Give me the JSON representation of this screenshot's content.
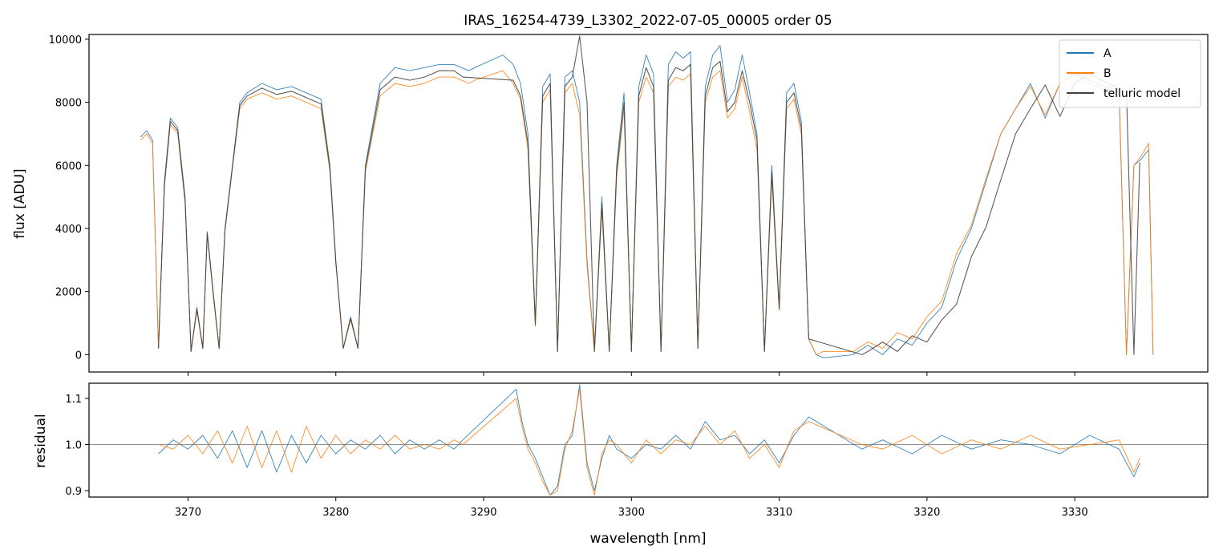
{
  "figure": {
    "title": "IRAS_16254-4739_L3302_2022-07-05_00005  order 05"
  },
  "chart_data": [
    {
      "type": "line",
      "panel": "flux",
      "xlabel": "",
      "ylabel": "flux [ADU]",
      "xlim": [
        3263.3,
        3339.0
      ],
      "ylim": [
        -550,
        10150
      ],
      "yticks": [
        0,
        2000,
        4000,
        6000,
        8000,
        10000
      ],
      "xticks": [
        3270,
        3280,
        3290,
        3300,
        3310,
        3320,
        3330
      ],
      "legend": {
        "placement": "top-right",
        "entries": [
          "A",
          "B",
          "telluric model"
        ]
      },
      "series": [
        {
          "name": "A",
          "color": "#1f77b4",
          "x": [
            3266.8,
            3267.2,
            3267.6,
            3268.0,
            3268.4,
            3268.8,
            3269.3,
            3269.8,
            3270.2,
            3270.6,
            3271.0,
            3271.3,
            3271.7,
            3272.1,
            3272.5,
            3273.0,
            3273.5,
            3274.0,
            3275.0,
            3276.0,
            3277.0,
            3278.0,
            3279.0,
            3279.6,
            3280.0,
            3280.5,
            3281.0,
            3281.5,
            3282.0,
            3283.0,
            3284.0,
            3285.0,
            3286.0,
            3287.0,
            3288.0,
            3289.0,
            3289.4,
            3291.3,
            3292.0,
            3292.5,
            3293.0,
            3293.5,
            3294.0,
            3294.5,
            3295.0,
            3295.5,
            3296.0,
            3296.5,
            3297.0,
            3297.5,
            3298.0,
            3298.5,
            3299.0,
            3299.5,
            3300.0,
            3300.5,
            3301.0,
            3301.5,
            3302.0,
            3302.5,
            3303.0,
            3303.5,
            3304.0,
            3304.5,
            3305.0,
            3305.5,
            3306.0,
            3306.5,
            3307.0,
            3307.5,
            3308.0,
            3308.5,
            3309.0,
            3309.5,
            3310.0,
            3310.5,
            3311.0,
            3311.5,
            3312.0,
            3312.5,
            3313.0,
            3315.0,
            3316.0,
            3317.0,
            3318.0,
            3319.0,
            3320.0,
            3321.0,
            3322.0,
            3323.0,
            3324.0,
            3325.0,
            3326.0,
            3327.0,
            3328.0,
            3329.0,
            3330.0,
            3331.0,
            3332.0,
            3333.0,
            3333.5,
            3334.0,
            3334.5,
            3335.0,
            3335.3
          ],
          "y": [
            6900,
            7100,
            6800,
            200,
            5500,
            7500,
            7200,
            5000,
            100,
            1500,
            200,
            3900,
            2000,
            200,
            4000,
            6000,
            8000,
            8300,
            8600,
            8400,
            8500,
            8300,
            8100,
            6000,
            3000,
            200,
            1200,
            200,
            6000,
            8600,
            9100,
            9000,
            9100,
            9200,
            9200,
            9000,
            9100,
            9500,
            9200,
            8600,
            7000,
            1000,
            8500,
            8900,
            100,
            8800,
            9000,
            8000,
            3000,
            100,
            5000,
            100,
            6000,
            8300,
            100,
            8500,
            9500,
            8900,
            100,
            9200,
            9600,
            9400,
            9600,
            200,
            8500,
            9500,
            9800,
            8000,
            8400,
            9500,
            8300,
            7000,
            100,
            6000,
            1500,
            8300,
            8600,
            7400,
            500,
            0,
            -100,
            0,
            300,
            0,
            500,
            300,
            1000,
            1500,
            3000,
            4000,
            5500,
            7000,
            7800,
            8600,
            7500,
            8600,
            8900,
            8700,
            8500,
            8400,
            0,
            6000,
            6200,
            6500,
            0
          ]
        },
        {
          "name": "B",
          "color": "#ff7f0e",
          "x": [
            3266.8,
            3267.2,
            3267.6,
            3268.0,
            3268.4,
            3268.8,
            3269.3,
            3269.8,
            3270.2,
            3270.6,
            3271.0,
            3271.3,
            3271.7,
            3272.1,
            3272.5,
            3273.0,
            3273.5,
            3274.0,
            3275.0,
            3276.0,
            3277.0,
            3278.0,
            3279.0,
            3279.6,
            3280.0,
            3280.5,
            3281.0,
            3281.5,
            3282.0,
            3283.0,
            3284.0,
            3285.0,
            3286.0,
            3287.0,
            3288.0,
            3289.0,
            3289.4,
            3291.3,
            3292.0,
            3292.5,
            3293.0,
            3293.5,
            3294.0,
            3294.5,
            3295.0,
            3295.5,
            3296.0,
            3296.5,
            3297.0,
            3297.5,
            3298.0,
            3298.5,
            3299.0,
            3299.5,
            3300.0,
            3300.5,
            3301.0,
            3301.5,
            3302.0,
            3302.5,
            3303.0,
            3303.5,
            3304.0,
            3304.5,
            3305.0,
            3305.5,
            3306.0,
            3306.5,
            3307.0,
            3307.5,
            3308.0,
            3308.5,
            3309.0,
            3309.5,
            3310.0,
            3310.5,
            3311.0,
            3311.5,
            3312.0,
            3312.5,
            3313.0,
            3315.0,
            3316.0,
            3317.0,
            3318.0,
            3319.0,
            3320.0,
            3321.0,
            3322.0,
            3323.0,
            3324.0,
            3325.0,
            3326.0,
            3327.0,
            3328.0,
            3329.0,
            3330.0,
            3331.0,
            3332.0,
            3333.0,
            3333.5,
            3334.0,
            3334.5,
            3335.0,
            3335.3
          ],
          "y": [
            6800,
            7000,
            6700,
            200,
            5300,
            7300,
            7000,
            4800,
            100,
            1400,
            200,
            3800,
            1900,
            200,
            3900,
            5900,
            7800,
            8100,
            8300,
            8100,
            8200,
            8000,
            7800,
            5800,
            2900,
            200,
            1100,
            200,
            5800,
            8200,
            8600,
            8500,
            8600,
            8800,
            8800,
            8600,
            8700,
            9000,
            8600,
            8100,
            6500,
            900,
            8000,
            8400,
            100,
            8300,
            8600,
            7600,
            2800,
            100,
            4600,
            100,
            5600,
            7800,
            100,
            8000,
            8800,
            8300,
            100,
            8500,
            8800,
            8700,
            8900,
            200,
            8000,
            8800,
            9000,
            7500,
            7800,
            8800,
            7700,
            6500,
            100,
            5600,
            1400,
            7800,
            8100,
            7000,
            500,
            0,
            100,
            100,
            400,
            200,
            700,
            500,
            1200,
            1700,
            3200,
            4100,
            5600,
            7000,
            7800,
            8500,
            7600,
            8600,
            8900,
            8600,
            8400,
            8300,
            0,
            6000,
            6300,
            6700,
            0
          ]
        },
        {
          "name": "telluric model",
          "color": "#404040",
          "x": [
            3268.0,
            3268.4,
            3268.8,
            3269.3,
            3269.8,
            3270.2,
            3270.6,
            3271.0,
            3271.3,
            3271.7,
            3272.1,
            3272.5,
            3273.0,
            3273.5,
            3274.0,
            3275.0,
            3276.0,
            3277.0,
            3278.0,
            3279.0,
            3279.6,
            3280.0,
            3280.5,
            3281.0,
            3281.5,
            3282.0,
            3283.0,
            3284.0,
            3285.0,
            3286.0,
            3287.0,
            3288.0,
            3288.6,
            3292.0,
            3292.5,
            3293.0,
            3293.5,
            3294.0,
            3294.5,
            3295.0,
            3295.5,
            3296.0,
            3296.5,
            3297.0,
            3297.5,
            3298.0,
            3298.5,
            3299.0,
            3299.5,
            3300.0,
            3300.5,
            3301.0,
            3301.5,
            3302.0,
            3302.5,
            3303.0,
            3303.5,
            3304.0,
            3304.5,
            3305.0,
            3305.5,
            3306.0,
            3306.5,
            3307.0,
            3307.5,
            3308.0,
            3308.5,
            3309.0,
            3309.5,
            3310.0,
            3310.5,
            3311.0,
            3311.5,
            3312.0,
            3315.6,
            3316.0,
            3317.0,
            3318.0,
            3319.0,
            3320.0,
            3321.0,
            3322.0,
            3323.0,
            3324.0,
            3325.0,
            3326.0,
            3327.0,
            3328.0,
            3329.0,
            3330.0,
            3331.0,
            3332.0,
            3333.0,
            3333.5,
            3334.0,
            3334.4
          ],
          "y": [
            200,
            5400,
            7400,
            7100,
            4900,
            100,
            1450,
            200,
            3850,
            1950,
            200,
            3950,
            5950,
            7900,
            8200,
            8450,
            8250,
            8350,
            8150,
            7950,
            5900,
            2950,
            200,
            1150,
            200,
            5900,
            8400,
            8800,
            8700,
            8800,
            9000,
            9000,
            8800,
            8700,
            8200,
            6700,
            950,
            8200,
            8600,
            100,
            8500,
            8800,
            10100,
            8000,
            100,
            4800,
            100,
            5800,
            8000,
            100,
            8200,
            9100,
            8500,
            100,
            8700,
            9100,
            9000,
            9200,
            200,
            8200,
            9100,
            9300,
            7700,
            8000,
            9000,
            8000,
            6800,
            100,
            5800,
            1450,
            8000,
            8300,
            7200,
            500,
            0,
            100,
            400,
            100,
            600,
            400,
            1100,
            1600,
            3100,
            4050,
            5550,
            7000,
            7800,
            8550,
            7550,
            8600,
            8900,
            8650,
            8450,
            8350,
            0,
            6100
          ]
        }
      ]
    },
    {
      "type": "line",
      "panel": "residual",
      "xlabel": "wavelength [nm]",
      "ylabel": "residual",
      "xlim": [
        3263.3,
        3339.0
      ],
      "ylim": [
        0.886,
        1.133
      ],
      "yticks": [
        0.9,
        1.0,
        1.1
      ],
      "xticks": [
        3270,
        3280,
        3290,
        3300,
        3310,
        3320,
        3330
      ],
      "reference_line": 1.0,
      "series": [
        {
          "name": "A",
          "color": "#1f77b4",
          "x": [
            3268.0,
            3269.0,
            3270.0,
            3271.0,
            3272.0,
            3273.0,
            3274.0,
            3275.0,
            3276.0,
            3277.0,
            3278.0,
            3279.0,
            3280.0,
            3281.0,
            3282.0,
            3283.0,
            3284.0,
            3285.0,
            3286.0,
            3287.0,
            3288.0,
            3288.6,
            3292.2,
            3292.6,
            3293.0,
            3293.5,
            3294.0,
            3294.5,
            3295.0,
            3295.5,
            3296.0,
            3296.5,
            3297.0,
            3297.5,
            3298.0,
            3298.5,
            3299.0,
            3300.0,
            3301.0,
            3302.0,
            3303.0,
            3304.0,
            3305.0,
            3306.0,
            3307.0,
            3308.0,
            3309.0,
            3310.0,
            3311.0,
            3312.0,
            3315.6,
            3317.0,
            3319.0,
            3321.0,
            3323.0,
            3325.0,
            3327.0,
            3329.0,
            3331.0,
            3333.0,
            3334.0,
            3334.4
          ],
          "y": [
            0.98,
            1.01,
            0.99,
            1.02,
            0.97,
            1.03,
            0.95,
            1.03,
            0.94,
            1.02,
            0.96,
            1.02,
            0.98,
            1.01,
            0.99,
            1.02,
            0.98,
            1.01,
            0.99,
            1.01,
            0.99,
            1.01,
            1.12,
            1.05,
            1.0,
            0.97,
            0.93,
            0.89,
            0.91,
            1.0,
            1.02,
            1.13,
            0.96,
            0.9,
            0.97,
            1.02,
            0.99,
            0.97,
            1.0,
            0.99,
            1.02,
            0.99,
            1.05,
            1.01,
            1.02,
            0.98,
            1.01,
            0.96,
            1.02,
            1.06,
            0.99,
            1.01,
            0.98,
            1.02,
            0.99,
            1.01,
            1.0,
            0.98,
            1.02,
            0.99,
            0.93,
            0.96
          ]
        },
        {
          "name": "B",
          "color": "#ff7f0e",
          "x": [
            3268.0,
            3269.0,
            3270.0,
            3271.0,
            3272.0,
            3273.0,
            3274.0,
            3275.0,
            3276.0,
            3277.0,
            3278.0,
            3279.0,
            3280.0,
            3281.0,
            3282.0,
            3283.0,
            3284.0,
            3285.0,
            3286.0,
            3287.0,
            3288.0,
            3288.6,
            3292.2,
            3292.6,
            3293.0,
            3293.5,
            3294.0,
            3294.5,
            3295.0,
            3295.5,
            3296.0,
            3296.5,
            3297.0,
            3297.5,
            3298.0,
            3298.5,
            3299.0,
            3300.0,
            3301.0,
            3302.0,
            3303.0,
            3304.0,
            3305.0,
            3306.0,
            3307.0,
            3308.0,
            3309.0,
            3310.0,
            3311.0,
            3312.0,
            3315.6,
            3317.0,
            3319.0,
            3321.0,
            3323.0,
            3325.0,
            3327.0,
            3329.0,
            3331.0,
            3333.0,
            3334.0,
            3334.4
          ],
          "y": [
            1.0,
            0.99,
            1.02,
            0.98,
            1.03,
            0.96,
            1.04,
            0.95,
            1.03,
            0.94,
            1.04,
            0.97,
            1.02,
            0.98,
            1.01,
            0.99,
            1.02,
            0.99,
            1.0,
            0.99,
            1.01,
            1.0,
            1.1,
            1.04,
            0.99,
            0.96,
            0.92,
            0.89,
            0.9,
            0.99,
            1.03,
            1.12,
            0.95,
            0.89,
            0.98,
            1.01,
            1.0,
            0.96,
            1.01,
            0.98,
            1.01,
            1.0,
            1.04,
            1.0,
            1.03,
            0.97,
            1.0,
            0.95,
            1.03,
            1.05,
            1.0,
            0.99,
            1.02,
            0.98,
            1.01,
            0.99,
            1.02,
            0.99,
            1.0,
            1.01,
            0.94,
            0.97
          ]
        }
      ]
    }
  ]
}
